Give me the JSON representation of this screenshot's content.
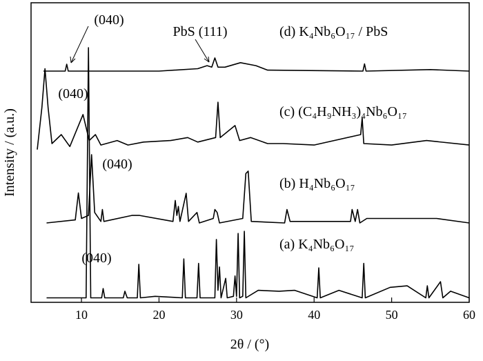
{
  "chart_data": {
    "type": "line",
    "x_label": "2θ / (°)",
    "y_label": "Intensity / (a.u.)",
    "xlim": [
      3.5,
      60
    ],
    "xticks": [
      10,
      20,
      30,
      40,
      50,
      60
    ],
    "ylim": [
      0,
      100
    ],
    "series": [
      {
        "name": "(a) K₄Nb₆O₁₇",
        "color": "#000000",
        "x": [
          5.5,
          10.6,
          10.9,
          11.2,
          12.6,
          12.8,
          13.0,
          15.4,
          15.6,
          15.9,
          17.2,
          17.4,
          17.6,
          19.5,
          23.0,
          23.2,
          23.4,
          24.9,
          25.1,
          25.3,
          27.2,
          27.4,
          27.6,
          27.8,
          28.0,
          28.6,
          28.8,
          29.6,
          29.8,
          30.0,
          30.2,
          30.4,
          30.8,
          31.0,
          31.2,
          32.8,
          35.5,
          37.5,
          40.4,
          40.6,
          40.8,
          43.2,
          46.2,
          46.4,
          46.6,
          49.8,
          52.0,
          54.4,
          54.6,
          54.8,
          56.3,
          56.6,
          57.6,
          60
        ],
        "values": [
          1.5,
          1.5,
          85,
          1.5,
          1.5,
          4.6,
          1.5,
          1.5,
          3.7,
          1.5,
          1.5,
          12.7,
          1.5,
          2,
          1.5,
          14.5,
          1.5,
          1.5,
          13,
          1.5,
          1.5,
          21,
          4,
          11.8,
          1.5,
          8,
          1.5,
          2,
          8.8,
          2,
          23,
          1.5,
          2,
          23.7,
          1.5,
          4,
          3.7,
          4,
          1.5,
          11.5,
          1.5,
          4,
          1.5,
          13,
          1.5,
          5,
          5.5,
          1.5,
          5.5,
          1.5,
          6.9,
          1.5,
          3.7,
          1.5
        ]
      },
      {
        "name": "(b) H₄Nb₆O₁₇",
        "color": "#000000",
        "x": [
          5.5,
          9.2,
          9.6,
          10.0,
          10.9,
          11.3,
          11.7,
          12.5,
          12.7,
          12.9,
          16.5,
          17.5,
          21.8,
          22.1,
          22.3,
          22.5,
          22.7,
          23.5,
          23.8,
          24.9,
          25.2,
          27.0,
          27.2,
          27.5,
          27.8,
          30.8,
          31.2,
          31.5,
          31.9,
          36.2,
          36.5,
          36.9,
          44.7,
          44.9,
          45.3,
          45.6,
          45.9,
          46.8,
          55.8,
          60
        ],
        "values": [
          26.5,
          27.5,
          36.5,
          28,
          29,
          49.3,
          30,
          27,
          31,
          27,
          29,
          29,
          27,
          34,
          29,
          32,
          27,
          36.4,
          27,
          30,
          26.5,
          28,
          31,
          30,
          26.5,
          28,
          43,
          43.8,
          27,
          26.5,
          31,
          27,
          27,
          31,
          27,
          31,
          26.5,
          28,
          28,
          26.5
        ]
      },
      {
        "name": "(c) (C₄H₉NH₃)₄Nb₆O₁₇",
        "color": "#000000",
        "x": [
          4.3,
          4.9,
          5.3,
          5.7,
          6.2,
          7.4,
          8.5,
          10.2,
          11.0,
          11.8,
          12.5,
          14.6,
          16,
          18,
          21.5,
          23.7,
          25,
          27.3,
          27.6,
          27.9,
          29.8,
          30.4,
          31.8,
          34,
          36,
          40,
          46.0,
          46.2,
          46.4,
          50,
          54.5,
          60
        ],
        "values": [
          51,
          65,
          78,
          65,
          53,
          56,
          52,
          62.7,
          54,
          56,
          52.5,
          54,
          52.5,
          53.5,
          54,
          55,
          53.5,
          55,
          66.8,
          55,
          59,
          54,
          55,
          53,
          53,
          52.5,
          56,
          61.6,
          53,
          52.5,
          54,
          52.5
        ]
      },
      {
        "name": "(d) K₄Nb₆O₁₇ / PbS",
        "color": "#000000",
        "x": [
          5.1,
          7.9,
          8.1,
          8.3,
          20,
          25,
          26.2,
          26.8,
          27.2,
          27.6,
          28.5,
          30.5,
          32.5,
          34,
          46.3,
          46.5,
          46.7,
          55,
          60
        ],
        "values": [
          77.2,
          77.2,
          79.5,
          77.2,
          77.2,
          78,
          79,
          78.5,
          81.6,
          78.5,
          78.5,
          80,
          79,
          77.5,
          77.2,
          79.6,
          77.2,
          77.7,
          77.2
        ]
      }
    ],
    "annotations": [
      "(040)",
      "(040)",
      "(040)",
      "(040)",
      "PbS (111)"
    ]
  }
}
